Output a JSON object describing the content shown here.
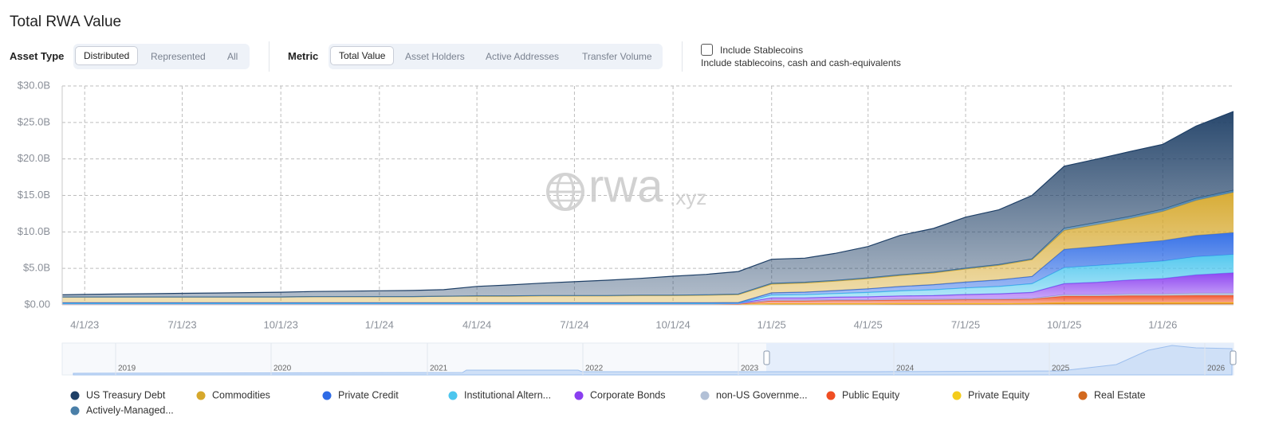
{
  "header": {
    "title": "Total RWA Value"
  },
  "controls": {
    "asset_type": {
      "label": "Asset Type",
      "options": [
        "Distributed",
        "Represented",
        "All"
      ]
    },
    "metric": {
      "label": "Metric",
      "options": [
        "Total Value",
        "Asset Holders",
        "Active Addresses",
        "Transfer Volume"
      ]
    },
    "stablecoins": {
      "label": "Include Stablecoins",
      "description": "Include stablecoins, cash and cash-equivalents"
    }
  },
  "chart_data": {
    "type": "area",
    "stacked": true,
    "watermark": {
      "main": "rwa",
      "suffix": ".xyz"
    },
    "x": [
      "3/11/23",
      "4/1/23",
      "5/1/23",
      "6/1/23",
      "7/1/23",
      "8/1/23",
      "9/1/23",
      "10/1/23",
      "11/1/23",
      "12/1/23",
      "1/1/24",
      "2/1/24",
      "3/1/24",
      "4/1/24",
      "5/1/24",
      "6/1/24",
      "7/1/24",
      "8/1/24",
      "9/1/24",
      "10/1/24",
      "11/1/24",
      "12/1/24",
      "1/1/25",
      "2/1/25",
      "3/1/25",
      "4/1/25",
      "5/1/25",
      "6/1/25",
      "7/1/25",
      "8/1/25",
      "9/1/25",
      "10/1/25",
      "11/1/25",
      "12/1/25",
      "1/1/26",
      "2/1/26",
      "3/8/26"
    ],
    "xlim": [
      "3/11/23",
      "3/8/26"
    ],
    "xticks": [
      "4/1/23",
      "7/1/23",
      "10/1/23",
      "1/1/24",
      "4/1/24",
      "7/1/24",
      "10/1/24",
      "1/1/25",
      "4/1/25",
      "7/1/25",
      "10/1/25",
      "1/1/26"
    ],
    "ylim": [
      0,
      30
    ],
    "yticks": [
      {
        "value": 0,
        "label": "$0.00"
      },
      {
        "value": 5,
        "label": "$5.0B"
      },
      {
        "value": 10,
        "label": "$10.0B"
      },
      {
        "value": 15,
        "label": "$15.0B"
      },
      {
        "value": 20,
        "label": "$20.0B"
      },
      {
        "value": 25,
        "label": "$25.0B"
      },
      {
        "value": 30,
        "label": "$30.0B"
      }
    ],
    "grid": true,
    "series": [
      {
        "name": "US Treasury Debt",
        "color": "#1e3f66",
        "values": [
          0.3,
          0.35,
          0.4,
          0.45,
          0.5,
          0.55,
          0.6,
          0.65,
          0.7,
          0.75,
          0.8,
          0.85,
          0.9,
          1.3,
          1.5,
          1.7,
          1.9,
          2.1,
          2.3,
          2.6,
          2.8,
          3.1,
          3.3,
          3.3,
          3.7,
          4.3,
          5.4,
          6.0,
          7.0,
          7.5,
          8.7,
          8.5,
          8.7,
          8.9,
          8.9,
          9.9,
          10.8
        ]
      },
      {
        "name": "Commodities",
        "color": "#d6a82c",
        "values": [
          0.8,
          0.8,
          0.8,
          0.8,
          0.8,
          0.8,
          0.8,
          0.8,
          0.85,
          0.85,
          0.85,
          0.85,
          0.9,
          0.9,
          0.9,
          0.95,
          0.95,
          0.95,
          1.0,
          1.0,
          1.05,
          1.1,
          1.2,
          1.25,
          1.3,
          1.4,
          1.5,
          1.6,
          1.8,
          2.0,
          2.3,
          2.6,
          3.0,
          3.4,
          4.0,
          4.8,
          5.5
        ]
      },
      {
        "name": "Private Credit",
        "color": "#2e6be6",
        "values": [
          0.1,
          0.1,
          0.1,
          0.1,
          0.1,
          0.1,
          0.1,
          0.1,
          0.1,
          0.1,
          0.1,
          0.1,
          0.1,
          0.1,
          0.1,
          0.1,
          0.1,
          0.1,
          0.1,
          0.1,
          0.1,
          0.1,
          0.3,
          0.35,
          0.4,
          0.5,
          0.6,
          0.7,
          0.8,
          0.9,
          1.0,
          2.5,
          2.6,
          2.7,
          2.8,
          2.9,
          3.0
        ]
      },
      {
        "name": "Institutional Altern...",
        "color": "#4cc6ee",
        "values": [
          0.02,
          0.02,
          0.02,
          0.02,
          0.02,
          0.02,
          0.02,
          0.02,
          0.02,
          0.02,
          0.02,
          0.02,
          0.02,
          0.02,
          0.02,
          0.02,
          0.02,
          0.02,
          0.02,
          0.02,
          0.02,
          0.02,
          0.4,
          0.45,
          0.5,
          0.6,
          0.7,
          0.8,
          0.9,
          1.0,
          1.2,
          2.2,
          2.3,
          2.3,
          2.4,
          2.5,
          2.5
        ]
      },
      {
        "name": "Corporate Bonds",
        "color": "#8a3ff0",
        "values": [
          0.03,
          0.03,
          0.03,
          0.03,
          0.03,
          0.03,
          0.03,
          0.03,
          0.03,
          0.03,
          0.03,
          0.03,
          0.03,
          0.03,
          0.03,
          0.03,
          0.03,
          0.03,
          0.03,
          0.03,
          0.03,
          0.03,
          0.3,
          0.3,
          0.35,
          0.4,
          0.45,
          0.5,
          0.6,
          0.7,
          0.8,
          1.5,
          1.7,
          1.9,
          2.1,
          2.5,
          2.8
        ]
      },
      {
        "name": "non-US Governme...",
        "color": "#b2c0d6",
        "values": [
          0.05,
          0.05,
          0.05,
          0.05,
          0.05,
          0.05,
          0.05,
          0.05,
          0.05,
          0.05,
          0.05,
          0.05,
          0.05,
          0.05,
          0.05,
          0.05,
          0.05,
          0.05,
          0.05,
          0.05,
          0.05,
          0.05,
          0.1,
          0.1,
          0.1,
          0.1,
          0.1,
          0.1,
          0.1,
          0.1,
          0.1,
          0.2,
          0.2,
          0.25,
          0.25,
          0.3,
          0.3
        ]
      },
      {
        "name": "Public Equity",
        "color": "#f04e23",
        "values": [
          0.01,
          0.01,
          0.01,
          0.01,
          0.01,
          0.01,
          0.01,
          0.01,
          0.01,
          0.01,
          0.01,
          0.01,
          0.01,
          0.01,
          0.01,
          0.01,
          0.01,
          0.01,
          0.01,
          0.01,
          0.01,
          0.05,
          0.4,
          0.4,
          0.45,
          0.45,
          0.5,
          0.5,
          0.55,
          0.55,
          0.6,
          0.9,
          0.9,
          0.95,
          0.95,
          1.0,
          1.0
        ]
      },
      {
        "name": "Private Equity",
        "color": "#f4cc1c",
        "values": [
          0.02,
          0.02,
          0.02,
          0.02,
          0.02,
          0.02,
          0.02,
          0.02,
          0.02,
          0.02,
          0.02,
          0.02,
          0.02,
          0.02,
          0.02,
          0.02,
          0.02,
          0.02,
          0.02,
          0.02,
          0.02,
          0.02,
          0.05,
          0.05,
          0.05,
          0.05,
          0.05,
          0.05,
          0.05,
          0.05,
          0.05,
          0.1,
          0.1,
          0.1,
          0.1,
          0.1,
          0.1
        ]
      },
      {
        "name": "Real Estate",
        "color": "#d2691e",
        "values": [
          0.05,
          0.05,
          0.05,
          0.05,
          0.05,
          0.05,
          0.05,
          0.05,
          0.05,
          0.05,
          0.05,
          0.05,
          0.05,
          0.05,
          0.05,
          0.05,
          0.05,
          0.05,
          0.05,
          0.05,
          0.05,
          0.05,
          0.1,
          0.1,
          0.1,
          0.1,
          0.12,
          0.12,
          0.12,
          0.12,
          0.15,
          0.2,
          0.2,
          0.2,
          0.2,
          0.2,
          0.2
        ]
      },
      {
        "name": "Actively-Managed...",
        "color": "#4a7fa8",
        "values": [
          0,
          0,
          0,
          0,
          0,
          0,
          0,
          0,
          0,
          0,
          0,
          0,
          0,
          0.05,
          0.05,
          0.05,
          0.05,
          0.05,
          0.05,
          0.05,
          0.05,
          0.05,
          0.1,
          0.1,
          0.1,
          0.1,
          0.1,
          0.1,
          0.1,
          0.1,
          0.1,
          0.3,
          0.3,
          0.3,
          0.3,
          0.3,
          0.3
        ]
      }
    ],
    "navigator": {
      "labels": [
        "2019",
        "2020",
        "2021",
        "2022",
        "2023",
        "2024",
        "2025",
        "2026"
      ]
    }
  }
}
